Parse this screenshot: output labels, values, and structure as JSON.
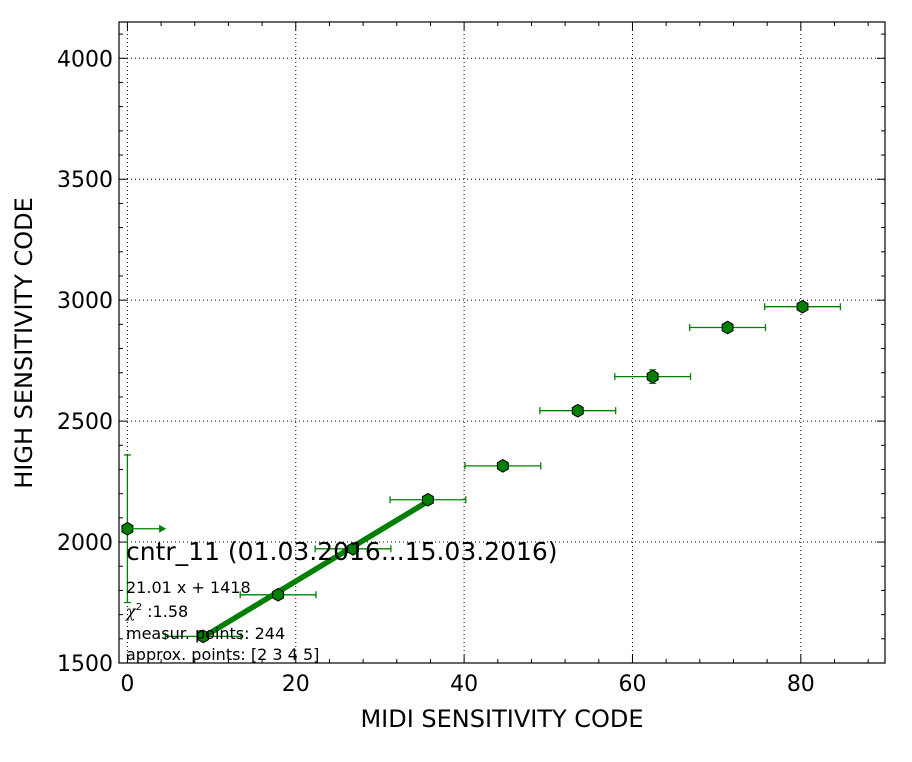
{
  "chart_data": {
    "type": "scatter",
    "xlabel": "MIDI SENSITIVITY CODE",
    "ylabel": "HIGH SENSITIVITY CODE",
    "xlim": [
      -1,
      90
    ],
    "ylim": [
      1500,
      4150
    ],
    "xticks": [
      0,
      20,
      40,
      60,
      80
    ],
    "yticks": [
      1500,
      2000,
      2500,
      3000,
      3500,
      4000
    ],
    "grid": true,
    "colors": {
      "marker": "#007f00",
      "errorbar": "#008000",
      "fit": "#007f00",
      "marker_edge": "#000000"
    },
    "points": [
      {
        "x": 0.0,
        "y": 2055,
        "xerr": 0,
        "yerr": 305,
        "note": "lower-limit arrow"
      },
      {
        "x": 9.0,
        "y": 1610,
        "xerr": 4.5,
        "yerr": 10
      },
      {
        "x": 17.9,
        "y": 1782,
        "xerr": 4.5,
        "yerr": 10
      },
      {
        "x": 26.8,
        "y": 1972,
        "xerr": 4.5,
        "yerr": 12
      },
      {
        "x": 35.7,
        "y": 2175,
        "xerr": 4.5,
        "yerr": 12
      },
      {
        "x": 44.6,
        "y": 2315,
        "xerr": 4.5,
        "yerr": 14
      },
      {
        "x": 53.5,
        "y": 2543,
        "xerr": 4.5,
        "yerr": 20
      },
      {
        "x": 62.4,
        "y": 2684,
        "xerr": 4.5,
        "yerr": 28
      },
      {
        "x": 71.3,
        "y": 2887,
        "xerr": 4.5,
        "yerr": 18
      },
      {
        "x": 80.2,
        "y": 2973,
        "xerr": 4.5,
        "yerr": 14
      }
    ],
    "fit": {
      "slope": 21.01,
      "intercept": 1418,
      "x_range": [
        9.0,
        35.7
      ]
    },
    "arrow": {
      "x_from": 0,
      "x_to": 4.6,
      "y": 2055
    },
    "annotations": {
      "title": "cntr_11 (01.03.2016...15.03.2016)",
      "equation": "21.01 x + 1418",
      "chi_symbol": "χ",
      "chi_exponent": "2",
      "chi_value": " :1.58",
      "measur_points": "measur. points: 244",
      "approx_points": "approx. points: [2 3 4 5]"
    }
  }
}
